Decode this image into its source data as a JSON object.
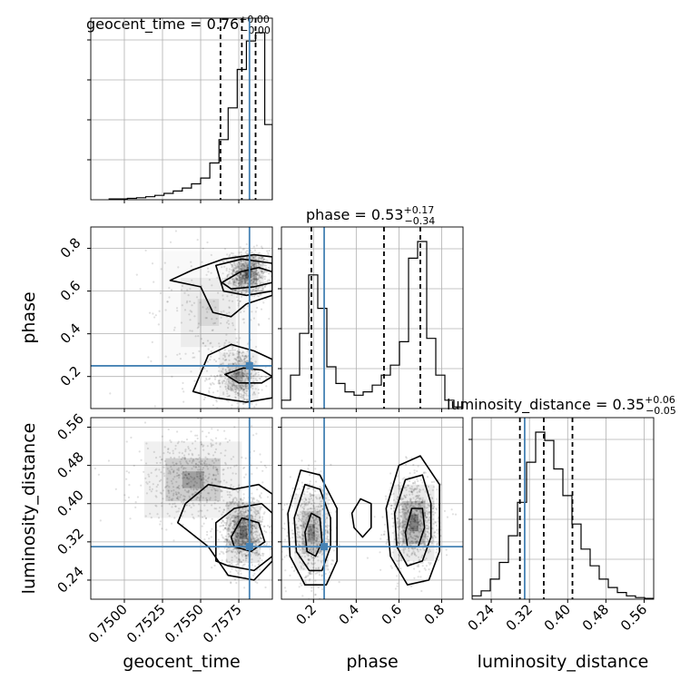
{
  "chart_data": {
    "type": "corner",
    "parameters": [
      "geocent_time",
      "phase",
      "luminosity_distance"
    ],
    "truth_color": "#4682b4",
    "truths": {
      "geocent_time": 0.7582,
      "phase": 0.25,
      "luminosity_distance": 0.31
    },
    "titles": {
      "geocent_time": {
        "name": "geocent_time",
        "value": "0.76",
        "plus": "+0.00",
        "minus": "−0.00"
      },
      "phase": {
        "name": "phase",
        "value": "0.53",
        "plus": "+0.17",
        "minus": "−0.34"
      },
      "luminosity_distance": {
        "name": "luminosity_distance",
        "value": "0.35",
        "plus": "+0.06",
        "minus": "−0.05"
      }
    },
    "axes": {
      "geocent_time": {
        "range": [
          0.7478,
          0.7597
        ],
        "ticks": [
          0.75,
          0.7525,
          0.755,
          0.7575
        ],
        "tick_labels": [
          "0.7500",
          "0.7525",
          "0.7550",
          "0.7575"
        ]
      },
      "phase": {
        "range": [
          0.05,
          0.9
        ],
        "ticks": [
          0.2,
          0.4,
          0.6,
          0.8
        ],
        "tick_labels": [
          "0.2",
          "0.4",
          "0.6",
          "0.8"
        ]
      },
      "luminosity_distance": {
        "range": [
          0.2,
          0.58
        ],
        "ticks": [
          0.24,
          0.32,
          0.4,
          0.48,
          0.56
        ],
        "tick_labels": [
          "0.24",
          "0.32",
          "0.40",
          "0.48",
          "0.56"
        ]
      }
    },
    "histograms": {
      "geocent_time": {
        "edges": [
          0.749,
          0.7496,
          0.7502,
          0.7508,
          0.7514,
          0.752,
          0.7526,
          0.7532,
          0.7538,
          0.7544,
          0.755,
          0.7556,
          0.7562,
          0.7568,
          0.7574,
          0.758,
          0.7586,
          0.7592,
          0.7597
        ],
        "counts": [
          0.005,
          0.005,
          0.008,
          0.012,
          0.018,
          0.026,
          0.038,
          0.052,
          0.07,
          0.095,
          0.13,
          0.22,
          0.36,
          0.55,
          0.78,
          0.95,
          1.0,
          0.45
        ],
        "quantiles": [
          0.7563,
          0.7577,
          0.7586
        ]
      },
      "phase": {
        "edges": [
          0.05,
          0.0925,
          0.135,
          0.1775,
          0.22,
          0.2625,
          0.305,
          0.3475,
          0.39,
          0.4325,
          0.475,
          0.5175,
          0.56,
          0.6025,
          0.645,
          0.6875,
          0.73,
          0.7725,
          0.815,
          0.8575,
          0.9
        ],
        "counts": [
          0.05,
          0.2,
          0.45,
          0.8,
          0.6,
          0.25,
          0.15,
          0.1,
          0.08,
          0.1,
          0.14,
          0.2,
          0.26,
          0.4,
          0.9,
          1.0,
          0.42,
          0.2,
          0.05,
          0.01
        ],
        "quantiles": [
          0.19,
          0.53,
          0.7
        ]
      },
      "luminosity_distance": {
        "edges": [
          0.2,
          0.219,
          0.238,
          0.257,
          0.276,
          0.295,
          0.314,
          0.333,
          0.352,
          0.371,
          0.39,
          0.409,
          0.428,
          0.447,
          0.466,
          0.485,
          0.504,
          0.523,
          0.542,
          0.561,
          0.58
        ],
        "counts": [
          0.02,
          0.05,
          0.12,
          0.22,
          0.38,
          0.58,
          0.82,
          1.0,
          0.95,
          0.78,
          0.62,
          0.45,
          0.3,
          0.2,
          0.12,
          0.07,
          0.04,
          0.02,
          0.01,
          0.005
        ],
        "quantiles": [
          0.3,
          0.35,
          0.41
        ]
      }
    },
    "scatter_2d": {
      "phase_vs_geocent_time": {
        "modes": [
          {
            "x": 0.7581,
            "y": 0.68,
            "sx": 0.00065,
            "sy": 0.055,
            "w": 0.5
          },
          {
            "x": 0.7575,
            "y": 0.2,
            "sx": 0.0008,
            "sy": 0.07,
            "w": 0.35
          },
          {
            "x": 0.7555,
            "y": 0.5,
            "sx": 0.002,
            "sy": 0.18,
            "w": 0.15
          }
        ]
      },
      "luminosity_distance_vs_geocent_time": {
        "modes": [
          {
            "x": 0.7578,
            "y": 0.34,
            "sx": 0.0007,
            "sy": 0.04,
            "w": 0.6
          },
          {
            "x": 0.7545,
            "y": 0.45,
            "sx": 0.002,
            "sy": 0.05,
            "w": 0.4
          }
        ]
      },
      "luminosity_distance_vs_phase": {
        "modes": [
          {
            "x": 0.19,
            "y": 0.34,
            "sx": 0.05,
            "sy": 0.05,
            "w": 0.45
          },
          {
            "x": 0.67,
            "y": 0.36,
            "sx": 0.06,
            "sy": 0.05,
            "w": 0.55
          }
        ]
      }
    },
    "contours_2d": {
      "phase_vs_geocent_time": [
        [
          [
            0.7564,
            0.64
          ],
          [
            0.7576,
            0.69
          ],
          [
            0.7588,
            0.71
          ],
          [
            0.7597,
            0.69
          ],
          [
            0.7597,
            0.64
          ],
          [
            0.7585,
            0.62
          ],
          [
            0.757,
            0.61
          ]
        ],
        [
          [
            0.7545,
            0.7
          ],
          [
            0.7565,
            0.75
          ],
          [
            0.7585,
            0.77
          ],
          [
            0.7597,
            0.76
          ],
          [
            0.7597,
            0.58
          ],
          [
            0.758,
            0.54
          ],
          [
            0.757,
            0.48
          ],
          [
            0.7558,
            0.5
          ],
          [
            0.755,
            0.62
          ],
          [
            0.753,
            0.65
          ]
        ],
        [
          [
            0.756,
            0.72
          ],
          [
            0.7577,
            0.75
          ],
          [
            0.7597,
            0.73
          ],
          [
            0.7597,
            0.6
          ],
          [
            0.758,
            0.58
          ],
          [
            0.7565,
            0.6
          ]
        ],
        [
          [
            0.7566,
            0.21
          ],
          [
            0.7578,
            0.24
          ],
          [
            0.759,
            0.23
          ],
          [
            0.7597,
            0.2
          ],
          [
            0.759,
            0.17
          ],
          [
            0.7575,
            0.17
          ]
        ],
        [
          [
            0.7545,
            0.13
          ],
          [
            0.7555,
            0.3
          ],
          [
            0.757,
            0.35
          ],
          [
            0.7585,
            0.32
          ],
          [
            0.7597,
            0.28
          ],
          [
            0.7597,
            0.1
          ],
          [
            0.758,
            0.08
          ],
          [
            0.756,
            0.1
          ]
        ]
      ],
      "luminosity_distance_vs_geocent_time": [
        [
          [
            0.757,
            0.33
          ],
          [
            0.7577,
            0.37
          ],
          [
            0.7588,
            0.36
          ],
          [
            0.7592,
            0.32
          ],
          [
            0.7583,
            0.3
          ],
          [
            0.7572,
            0.31
          ]
        ],
        [
          [
            0.756,
            0.28
          ],
          [
            0.756,
            0.36
          ],
          [
            0.7572,
            0.39
          ],
          [
            0.759,
            0.4
          ],
          [
            0.7597,
            0.38
          ],
          [
            0.7597,
            0.29
          ],
          [
            0.7585,
            0.26
          ],
          [
            0.7568,
            0.27
          ]
        ],
        [
          [
            0.754,
            0.4
          ],
          [
            0.7555,
            0.44
          ],
          [
            0.7572,
            0.43
          ],
          [
            0.7588,
            0.44
          ],
          [
            0.7597,
            0.42
          ],
          [
            0.7597,
            0.28
          ],
          [
            0.7585,
            0.24
          ],
          [
            0.7568,
            0.25
          ],
          [
            0.7555,
            0.31
          ],
          [
            0.7535,
            0.36
          ]
        ]
      ],
      "luminosity_distance_vs_phase": [
        [
          [
            0.16,
            0.34
          ],
          [
            0.19,
            0.38
          ],
          [
            0.23,
            0.37
          ],
          [
            0.24,
            0.32
          ],
          [
            0.21,
            0.29
          ],
          [
            0.17,
            0.3
          ]
        ],
        [
          [
            0.11,
            0.37
          ],
          [
            0.16,
            0.44
          ],
          [
            0.23,
            0.43
          ],
          [
            0.28,
            0.37
          ],
          [
            0.28,
            0.31
          ],
          [
            0.24,
            0.26
          ],
          [
            0.18,
            0.26
          ],
          [
            0.12,
            0.3
          ]
        ],
        [
          [
            0.08,
            0.38
          ],
          [
            0.14,
            0.47
          ],
          [
            0.23,
            0.46
          ],
          [
            0.31,
            0.39
          ],
          [
            0.31,
            0.28
          ],
          [
            0.26,
            0.23
          ],
          [
            0.16,
            0.23
          ],
          [
            0.09,
            0.29
          ]
        ],
        [
          [
            0.63,
            0.34
          ],
          [
            0.66,
            0.39
          ],
          [
            0.71,
            0.39
          ],
          [
            0.72,
            0.35
          ],
          [
            0.69,
            0.31
          ],
          [
            0.64,
            0.31
          ]
        ],
        [
          [
            0.58,
            0.38
          ],
          [
            0.63,
            0.45
          ],
          [
            0.71,
            0.46
          ],
          [
            0.75,
            0.4
          ],
          [
            0.75,
            0.33
          ],
          [
            0.71,
            0.28
          ],
          [
            0.64,
            0.27
          ],
          [
            0.59,
            0.31
          ]
        ],
        [
          [
            0.54,
            0.39
          ],
          [
            0.6,
            0.48
          ],
          [
            0.7,
            0.5
          ],
          [
            0.79,
            0.44
          ],
          [
            0.79,
            0.3
          ],
          [
            0.74,
            0.24
          ],
          [
            0.64,
            0.23
          ],
          [
            0.56,
            0.29
          ]
        ],
        [
          [
            0.38,
            0.38
          ],
          [
            0.42,
            0.41
          ],
          [
            0.47,
            0.4
          ],
          [
            0.47,
            0.35
          ],
          [
            0.43,
            0.33
          ],
          [
            0.39,
            0.35
          ]
        ]
      ]
    }
  }
}
